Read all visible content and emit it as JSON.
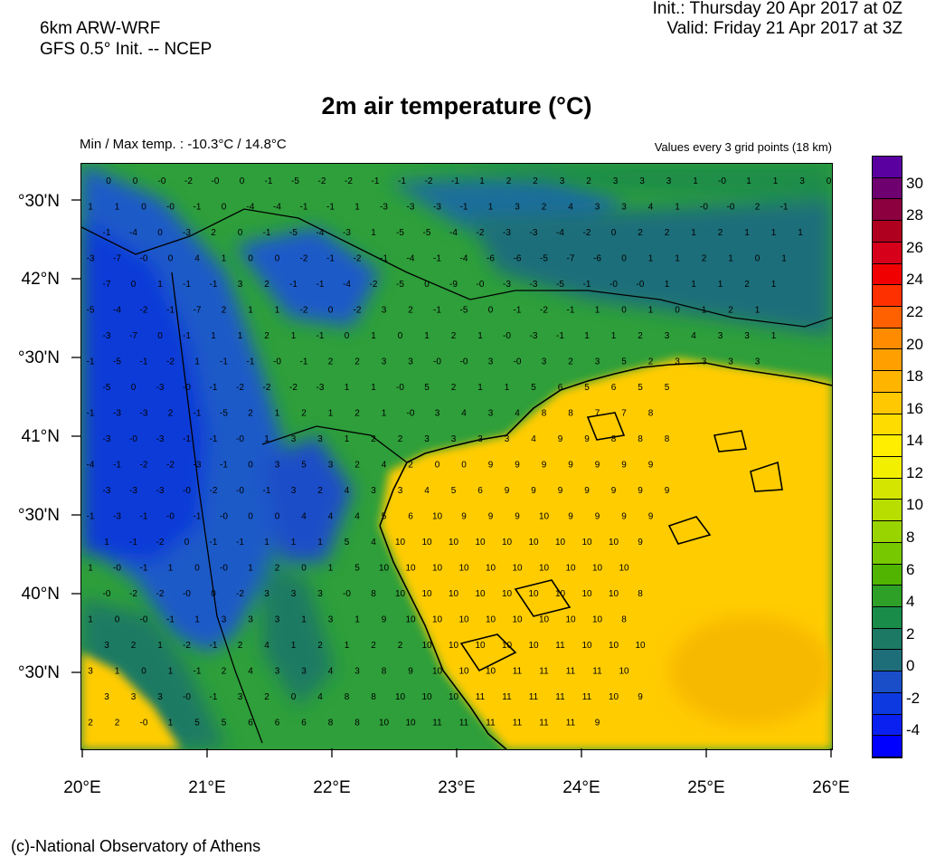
{
  "header": {
    "model_line1": "6km ARW-WRF",
    "model_line2": "GFS 0.5° Init. -- NCEP",
    "init": "Init.:  Thursday 20 Apr 2017 at 0Z",
    "valid": "Valid: Friday 21 Apr 2017 at 3Z"
  },
  "title": "2m air temperature (°C)",
  "subtitle_left": "Min / Max temp. : -10.3°C / 14.8°C",
  "subtitle_right": "Values every 3 grid points (18 km)",
  "credit": "(c)-National Observatory of Athens",
  "lat_labels": [
    "°30'N",
    "42°N",
    "°30'N",
    "41°N",
    "°30'N",
    "40°N",
    "°30'N"
  ],
  "lon_labels": [
    "20°E",
    "21°E",
    "22°E",
    "23°E",
    "24°E",
    "25°E",
    "26°E"
  ],
  "colorbar": {
    "labels": [
      "30",
      "28",
      "26",
      "24",
      "22",
      "20",
      "18",
      "16",
      "14",
      "12",
      "10",
      "8",
      "6",
      "4",
      "2",
      "0",
      "-2",
      "-4"
    ],
    "colors": [
      "#5a00a0",
      "#6e0070",
      "#8c0040",
      "#b00020",
      "#d6001a",
      "#f00000",
      "#ff3000",
      "#ff6000",
      "#ff8c00",
      "#ffa000",
      "#ffb400",
      "#ffc800",
      "#ffdc00",
      "#ffee00",
      "#f2f000",
      "#d4e600",
      "#b8de00",
      "#9ad400",
      "#78c800",
      "#50b400",
      "#2ea028",
      "#1a8c4a",
      "#1c7a64",
      "#1e6e7a",
      "#1a4ec8",
      "#0c3ae0",
      "#0a20f0",
      "#0000ff"
    ]
  },
  "map": {
    "field": "2m air temperature",
    "units": "°C",
    "colors": {
      "sea_warm": "#ffcc00",
      "land_cold": "#1e6e7a",
      "boundary": "#000000"
    },
    "grid_values": [
      [
        "0",
        "0",
        "-0",
        "-2",
        "-0",
        "0",
        "-1",
        "-5",
        "-2",
        "-2",
        "-1",
        "-1",
        "-2",
        "-1",
        "1",
        "2",
        "2",
        "3",
        "2",
        "3",
        "3",
        "3",
        "1",
        "-0",
        "1",
        "1",
        "3",
        "0"
      ],
      [
        "1",
        "1",
        "0",
        "-0",
        "-1",
        "0",
        "-4",
        "-4",
        "-1",
        "-1",
        "1",
        "-3",
        "-3",
        "-3",
        "-1",
        "1",
        "3",
        "2",
        "4",
        "3",
        "3",
        "4",
        "1",
        "-0",
        "-0",
        "2",
        "-1"
      ],
      [
        "-1",
        "-4",
        "0",
        "-3",
        "2",
        "0",
        "-1",
        "-5",
        "-4",
        "-3",
        "1",
        "-5",
        "-5",
        "-4",
        "-2",
        "-3",
        "-3",
        "-4",
        "-2",
        "0",
        "2",
        "2",
        "1",
        "2",
        "1",
        "1",
        "1"
      ],
      [
        "-3",
        "-7",
        "-0",
        "0",
        "4",
        "1",
        "0",
        "0",
        "-2",
        "-1",
        "-2",
        "-1",
        "-4",
        "-1",
        "-4",
        "-6",
        "-6",
        "-5",
        "-7",
        "-6",
        "0",
        "1",
        "1",
        "2",
        "1",
        "0",
        "1"
      ],
      [
        "-7",
        "0",
        "1",
        "-1",
        "-1",
        "3",
        "2",
        "-1",
        "-1",
        "-4",
        "-2",
        "-5",
        "0",
        "-9",
        "-0",
        "-3",
        "-3",
        "-5",
        "-1",
        "-0",
        "-0",
        "1",
        "1",
        "1",
        "2",
        "1"
      ],
      [
        "-5",
        "-4",
        "-2",
        "-1",
        "-7",
        "2",
        "1",
        "1",
        "-2",
        "0",
        "-2",
        "3",
        "2",
        "-1",
        "-5",
        "0",
        "-1",
        "-2",
        "-1",
        "1",
        "0",
        "1",
        "0",
        "1",
        "2",
        "1"
      ],
      [
        "-3",
        "-7",
        "0",
        "-1",
        "1",
        "1",
        "2",
        "1",
        "-1",
        "0",
        "1",
        "0",
        "1",
        "2",
        "1",
        "-0",
        "-3",
        "-1",
        "1",
        "1",
        "2",
        "3",
        "4",
        "3",
        "3",
        "1"
      ],
      [
        "-1",
        "-5",
        "-1",
        "-2",
        "1",
        "-1",
        "-1",
        "-0",
        "-1",
        "2",
        "2",
        "3",
        "3",
        "-0",
        "-0",
        "3",
        "-0",
        "3",
        "2",
        "3",
        "5",
        "2",
        "3",
        "3",
        "3",
        "3"
      ],
      [
        "-5",
        "0",
        "-3",
        "-0",
        "-1",
        "-2",
        "-2",
        "-2",
        "-3",
        "1",
        "1",
        "-0",
        "5",
        "2",
        "1",
        "1",
        "5",
        "6",
        "5",
        "6",
        "5",
        "5"
      ],
      [
        "-1",
        "-3",
        "-3",
        "2",
        "-1",
        "-5",
        "2",
        "1",
        "2",
        "1",
        "2",
        "1",
        "-0",
        "3",
        "4",
        "3",
        "4",
        "8",
        "8",
        "7",
        "7",
        "8"
      ],
      [
        "-3",
        "-0",
        "-3",
        "-1",
        "-1",
        "-0",
        "1",
        "3",
        "3",
        "1",
        "2",
        "2",
        "3",
        "3",
        "3",
        "3",
        "4",
        "9",
        "9",
        "8",
        "8",
        "8"
      ],
      [
        "-4",
        "-1",
        "-2",
        "-2",
        "-3",
        "-1",
        "0",
        "3",
        "5",
        "3",
        "2",
        "4",
        "2",
        "0",
        "0",
        "9",
        "9",
        "9",
        "9",
        "9",
        "9",
        "9"
      ],
      [
        "-3",
        "-3",
        "-3",
        "-0",
        "-2",
        "-0",
        "-1",
        "3",
        "2",
        "4",
        "3",
        "3",
        "4",
        "5",
        "6",
        "9",
        "9",
        "9",
        "9",
        "9",
        "9",
        "9"
      ],
      [
        "-1",
        "-3",
        "-1",
        "-0",
        "-1",
        "-0",
        "0",
        "0",
        "4",
        "4",
        "4",
        "5",
        "6",
        "10",
        "9",
        "9",
        "9",
        "10",
        "9",
        "9",
        "9",
        "9"
      ],
      [
        "1",
        "-1",
        "-2",
        "0",
        "-1",
        "-1",
        "1",
        "1",
        "1",
        "5",
        "4",
        "10",
        "10",
        "10",
        "10",
        "10",
        "10",
        "10",
        "10",
        "10",
        "9"
      ],
      [
        "1",
        "-0",
        "-1",
        "1",
        "0",
        "-0",
        "1",
        "2",
        "0",
        "1",
        "5",
        "10",
        "10",
        "10",
        "10",
        "10",
        "10",
        "10",
        "10",
        "10",
        "10"
      ],
      [
        "-0",
        "-2",
        "-2",
        "-0",
        "0",
        "-2",
        "3",
        "3",
        "3",
        "-0",
        "8",
        "10",
        "10",
        "10",
        "10",
        "10",
        "10",
        "10",
        "10",
        "10",
        "8"
      ],
      [
        "1",
        "0",
        "-0",
        "-1",
        "1",
        "3",
        "3",
        "3",
        "1",
        "3",
        "1",
        "9",
        "10",
        "10",
        "10",
        "10",
        "10",
        "10",
        "10",
        "10",
        "8"
      ],
      [
        "3",
        "2",
        "1",
        "-2",
        "-1",
        "2",
        "4",
        "1",
        "2",
        "1",
        "2",
        "2",
        "10",
        "10",
        "10",
        "10",
        "10",
        "11",
        "10",
        "10",
        "10"
      ],
      [
        "3",
        "1",
        "0",
        "1",
        "-1",
        "2",
        "4",
        "3",
        "3",
        "4",
        "3",
        "8",
        "9",
        "10",
        "10",
        "10",
        "11",
        "11",
        "11",
        "11",
        "10"
      ],
      [
        "3",
        "3",
        "3",
        "-0",
        "-1",
        "3",
        "2",
        "0",
        "4",
        "8",
        "8",
        "10",
        "10",
        "10",
        "11",
        "11",
        "11",
        "11",
        "11",
        "10",
        "9"
      ],
      [
        "2",
        "2",
        "-0",
        "1",
        "5",
        "5",
        "6",
        "6",
        "6",
        "8",
        "8",
        "10",
        "10",
        "11",
        "11",
        "11",
        "11",
        "11",
        "11",
        "9"
      ]
    ]
  }
}
